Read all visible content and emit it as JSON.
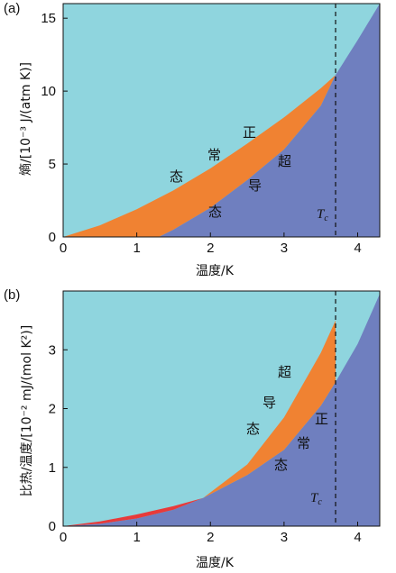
{
  "colors": {
    "normal": "#8fd5de",
    "superconducting": "#6f7fbf",
    "band": "#f08232",
    "low_band": "#e83a3a",
    "axis": "#111111"
  },
  "chart_data": [
    {
      "type": "area",
      "panel_label": "(a)",
      "xlabel": "温度/K",
      "ylabel": "熵/[10⁻³ J/(atm K)]",
      "xlim": [
        0,
        4.3
      ],
      "ylim": [
        0,
        16
      ],
      "xticks": [
        "0",
        "1",
        "2",
        "3",
        "4"
      ],
      "yticks": [
        "0",
        "5",
        "10",
        "15"
      ],
      "tc": 3.7,
      "tc_label": "T",
      "tc_sub": "c",
      "series": [
        {
          "name": "正常态",
          "x": [
            0,
            0.5,
            1.0,
            1.5,
            2.0,
            2.5,
            3.0,
            3.5,
            3.7
          ],
          "y": [
            0,
            0.8,
            1.9,
            3.2,
            4.7,
            6.4,
            8.2,
            10.2,
            11.1
          ]
        },
        {
          "name": "超导态",
          "x": [
            1.3,
            1.5,
            2.0,
            2.5,
            3.0,
            3.5,
            3.7,
            4.0,
            4.3
          ],
          "y": [
            0,
            0.5,
            2.0,
            3.9,
            6.0,
            9.0,
            11.1,
            13.5,
            16.0
          ]
        }
      ],
      "annotations": {
        "zheng": "正",
        "chang": "常",
        "tai_normal": "态",
        "chao": "超",
        "dao": "导",
        "tai_super": "态"
      }
    },
    {
      "type": "area",
      "panel_label": "(b)",
      "xlabel": "温度/K",
      "ylabel": "比热/温度/[10⁻² mJ/(mol K²)]",
      "xlim": [
        0,
        4.3
      ],
      "ylim": [
        0,
        4.0
      ],
      "xticks": [
        "0",
        "1",
        "2",
        "3",
        "4"
      ],
      "yticks": [
        "0",
        "1",
        "2",
        "3"
      ],
      "tc": 3.7,
      "tc_label": "T",
      "tc_sub": "c",
      "series": [
        {
          "name": "正常态",
          "x": [
            0,
            0.5,
            1.0,
            1.5,
            1.9,
            2.5,
            3.0,
            3.5,
            3.7,
            4.0,
            4.3
          ],
          "y": [
            0,
            0.04,
            0.13,
            0.28,
            0.48,
            0.87,
            1.3,
            2.05,
            2.45,
            3.1,
            3.95
          ]
        },
        {
          "name": "超导态",
          "x": [
            0,
            0.5,
            1.0,
            1.5,
            1.9,
            2.5,
            3.0,
            3.5,
            3.7
          ],
          "y": [
            0,
            0.08,
            0.2,
            0.34,
            0.48,
            1.05,
            1.85,
            2.95,
            3.5
          ]
        }
      ],
      "annotations": {
        "chao": "超",
        "dao": "导",
        "tai_super": "态",
        "zheng": "正",
        "chang": "常",
        "tai_normal": "态"
      }
    }
  ]
}
